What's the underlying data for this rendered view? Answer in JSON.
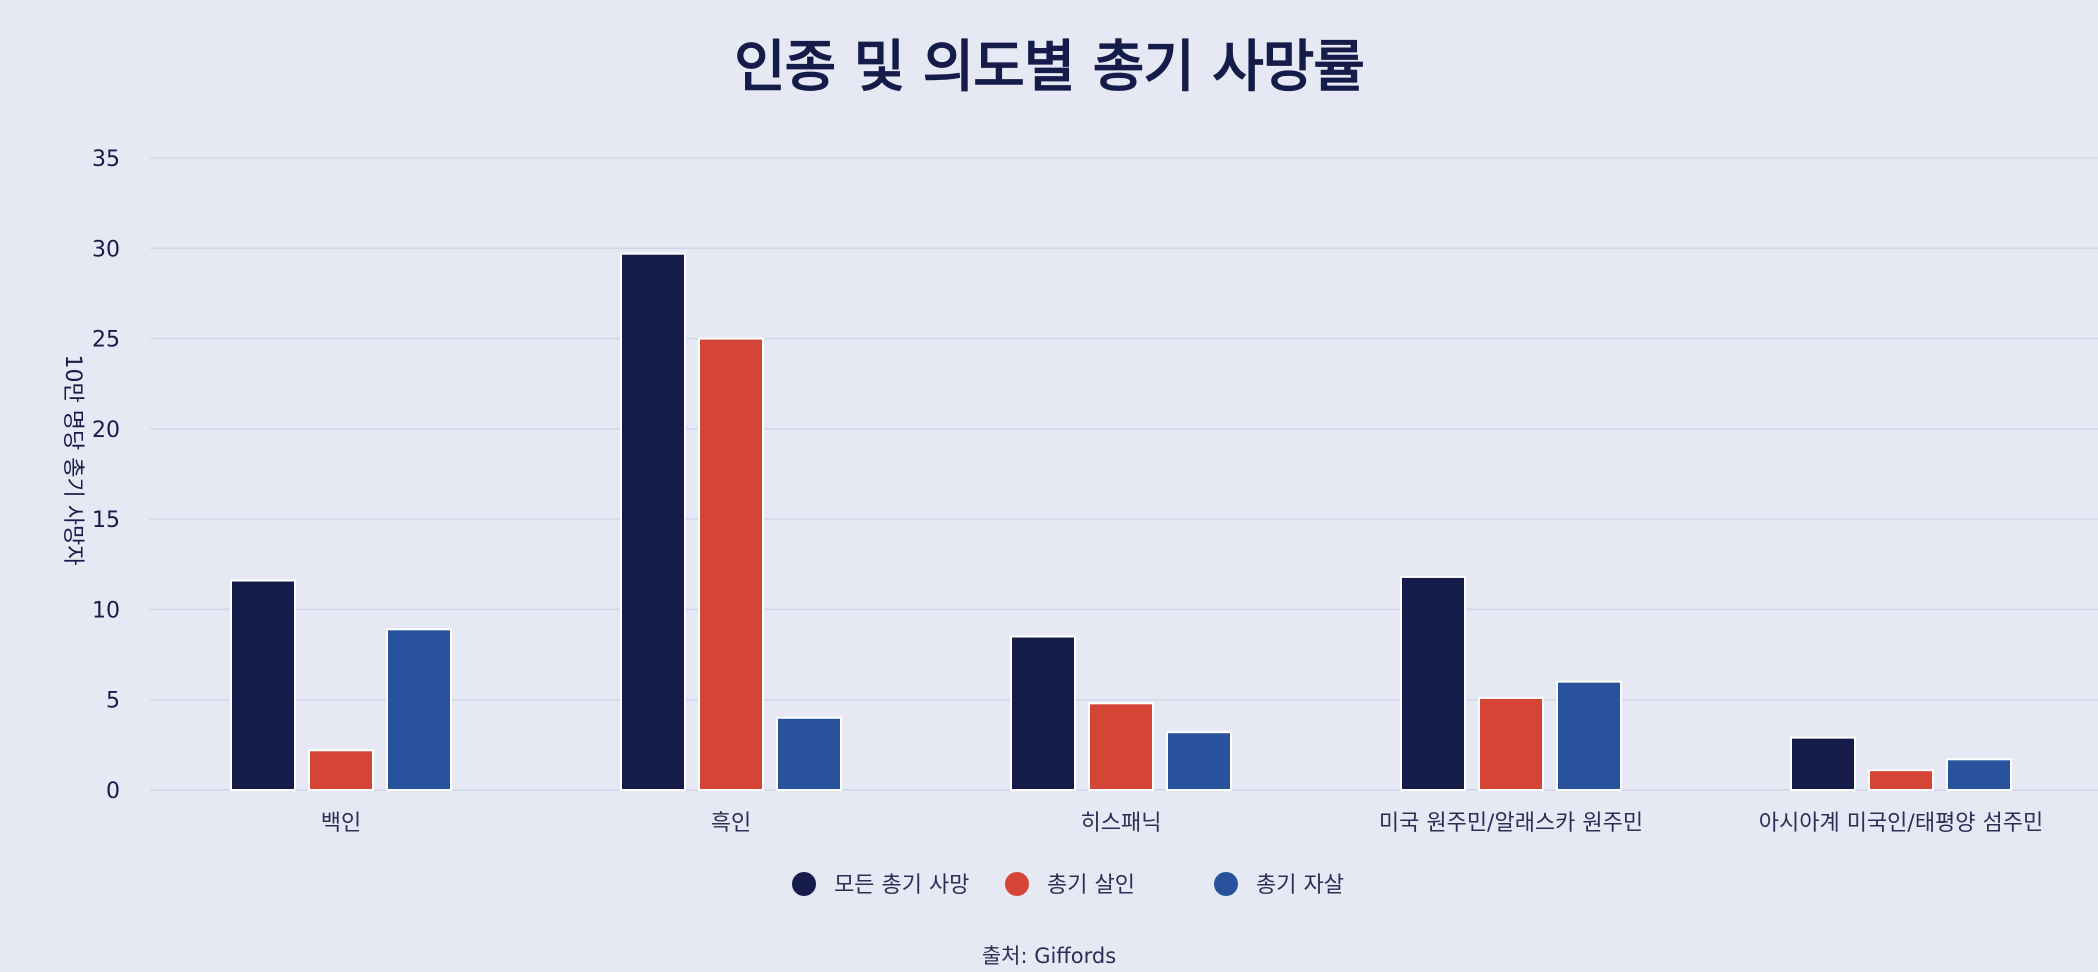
{
  "chart_data": {
    "type": "bar",
    "title": "인종 및 의도별 총기 사망률",
    "xlabel": "",
    "ylabel": "10만 명당 총기 사망자",
    "ylim": [
      0,
      35
    ],
    "yticks": [
      0,
      5,
      10,
      15,
      20,
      25,
      30,
      35
    ],
    "grid": true,
    "legend_position": "bottom",
    "categories": [
      "백인",
      "흑인",
      "히스패닉",
      "미국 원주민/알래스카 원주민",
      "아시아계 미국인/태평양 섬주민"
    ],
    "series": [
      {
        "name": "모든 총기 사망",
        "color": "#161c4a",
        "values": [
          11.6,
          29.7,
          8.5,
          11.8,
          2.9
        ]
      },
      {
        "name": "총기 살인",
        "color": "#d44535",
        "values": [
          2.2,
          25.0,
          4.8,
          5.1,
          1.1
        ]
      },
      {
        "name": "총기 자살",
        "color": "#28529c",
        "values": [
          8.9,
          4.0,
          3.2,
          6.0,
          1.7
        ]
      }
    ],
    "source": "출처: Giffords"
  }
}
